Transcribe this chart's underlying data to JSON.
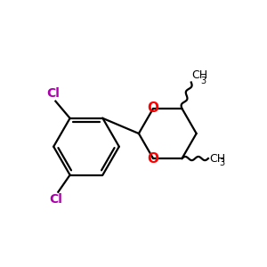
{
  "background_color": "#ffffff",
  "bond_color": "#000000",
  "o_color": "#ff0000",
  "cl_color": "#aa00aa",
  "line_width": 1.6,
  "figsize": [
    3.0,
    3.0
  ],
  "dpi": 100,
  "xlim": [
    0.0,
    10.0
  ],
  "ylim": [
    1.0,
    9.0
  ]
}
